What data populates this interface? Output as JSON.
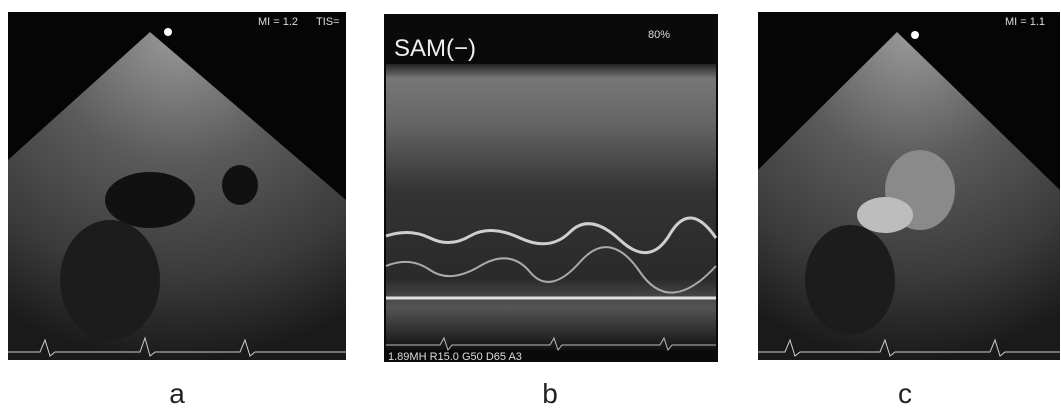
{
  "panels": [
    {
      "label": "a",
      "overlays": [
        "MI = 1.2",
        "TIS="
      ]
    },
    {
      "label": "b",
      "overlays": [
        "SAM(−)",
        "80%",
        "1.89MH  R15.0  G50  D65  A3"
      ]
    },
    {
      "label": "c",
      "overlays": [
        "MI = 1.1"
      ]
    }
  ]
}
